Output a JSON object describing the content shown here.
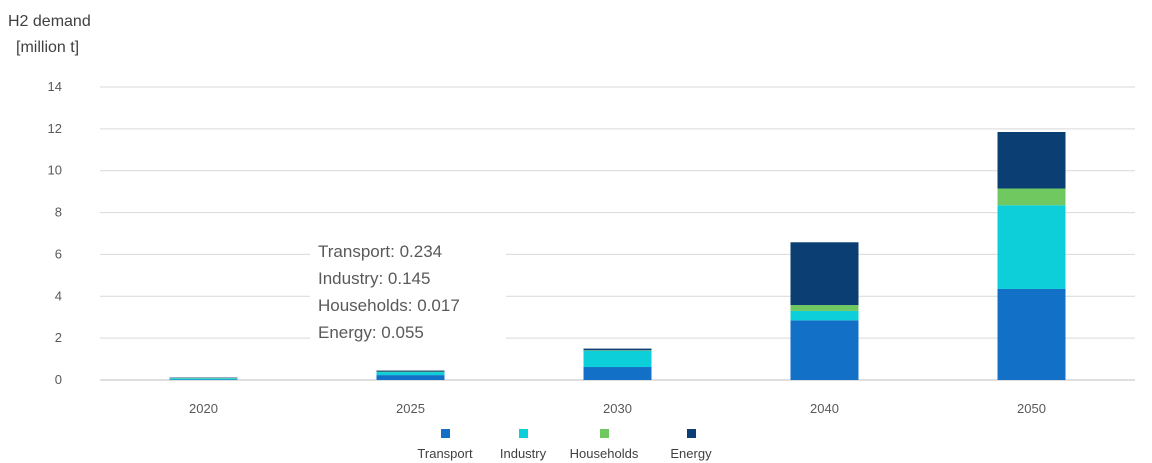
{
  "chart_data": {
    "type": "bar",
    "stacked": true,
    "ylabel_line1": "H2 demand",
    "ylabel_line2": "[million t]",
    "xlabel": "",
    "categories": [
      "2020",
      "2025",
      "2030",
      "2040",
      "2050"
    ],
    "ylim": [
      0,
      14
    ],
    "yticks": [
      0,
      2,
      4,
      6,
      8,
      10,
      12,
      14
    ],
    "grid": true,
    "legend_position": "bottom",
    "series": [
      {
        "name": "Transport",
        "color": "#1270c7",
        "values": [
          0.03,
          0.234,
          0.62,
          2.85,
          4.35
        ]
      },
      {
        "name": "Industry",
        "color": "#0ccfda",
        "values": [
          0.05,
          0.145,
          0.78,
          0.45,
          4.0
        ]
      },
      {
        "name": "Households",
        "color": "#70c860",
        "values": [
          0.02,
          0.017,
          0.02,
          0.28,
          0.8
        ]
      },
      {
        "name": "Energy",
        "color": "#0b3f73",
        "values": [
          0.02,
          0.055,
          0.08,
          3.0,
          2.7
        ]
      }
    ],
    "tooltip": {
      "category": "2025",
      "lines": [
        "Transport: 0.234",
        "Industry: 0.145",
        "Households: 0.017",
        "Energy: 0.055"
      ]
    }
  }
}
